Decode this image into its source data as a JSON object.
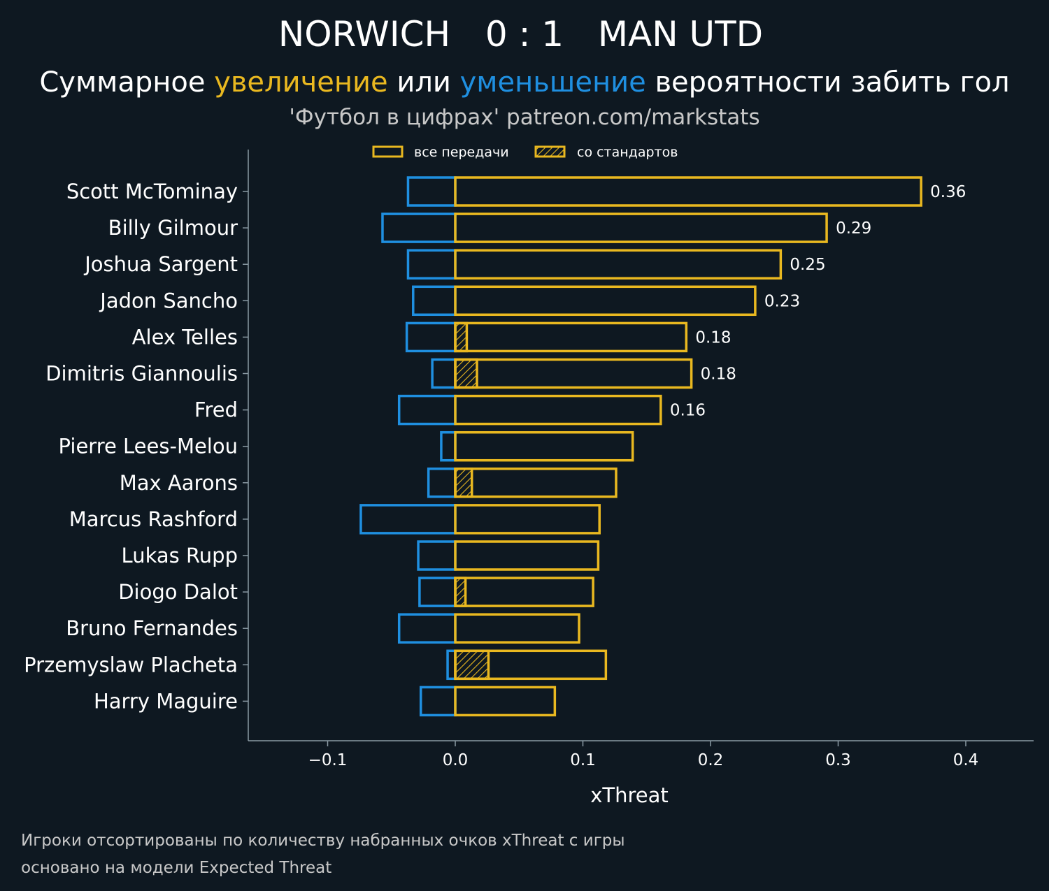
{
  "header": {
    "home_team": "NORWICH",
    "score": "0 : 1",
    "away_team": "MAN UTD",
    "subtitle_part1": "Суммарное ",
    "subtitle_increase": "увеличение",
    "subtitle_part2": " или ",
    "subtitle_decrease": "уменьшение",
    "subtitle_part3": " вероятности забить гол",
    "source": "'Футбол в цифрах' patreon.com/markstats"
  },
  "footnote": {
    "line1": "Игроки отсортированы по количеству набранных очков xThreat с игры",
    "line2": "основано на модели Expected Threat"
  },
  "colors": {
    "background": "#0e1821",
    "increase": "#e9b820",
    "decrease": "#1f8fe0",
    "axis": "#8a9aa4"
  },
  "chart_data": {
    "type": "bar",
    "orientation": "horizontal",
    "xlabel": "xThreat",
    "xlim": [
      -0.162,
      0.453
    ],
    "xticks": [
      -0.1,
      0.0,
      0.1,
      0.2,
      0.3,
      0.4
    ],
    "xtick_labels": [
      "−0.1",
      "0.0",
      "0.1",
      "0.2",
      "0.3",
      "0.4"
    ],
    "legend": {
      "position": "top-center",
      "entries": [
        "все передачи",
        "со стандартов"
      ]
    },
    "categories": [
      "Scott McTominay",
      "Billy Gilmour",
      "Joshua Sargent",
      "Jadon Sancho",
      "Alex Telles",
      "Dimitris Giannoulis",
      "Fred",
      "Pierre Lees-Melou",
      "Max Aarons",
      "Marcus Rashford",
      "Lukas Rupp",
      "Diogo Dalot",
      "Bruno Fernandes",
      "Przemyslaw Placheta",
      "Harry Maguire"
    ],
    "series": [
      {
        "name": "все передачи",
        "values": [
          0.365,
          0.291,
          0.255,
          0.235,
          0.181,
          0.185,
          0.161,
          0.139,
          0.126,
          0.113,
          0.112,
          0.108,
          0.097,
          0.118,
          0.078
        ]
      },
      {
        "name": "со стандартов",
        "values": [
          0,
          0,
          0,
          0,
          0.009,
          0.017,
          0,
          0,
          0.013,
          0,
          0,
          0.008,
          0,
          0.026,
          0
        ]
      },
      {
        "values": [
          -0.037,
          -0.057,
          -0.037,
          -0.033,
          -0.038,
          -0.018,
          -0.044,
          -0.011,
          -0.021,
          -0.074,
          -0.029,
          -0.028,
          -0.044,
          -0.006,
          -0.027
        ]
      }
    ],
    "value_labels": [
      "0.36",
      "0.29",
      "0.25",
      "0.23",
      "0.18",
      "0.18",
      "0.16",
      "",
      "",
      "",
      "",
      "",
      "",
      "",
      ""
    ]
  }
}
